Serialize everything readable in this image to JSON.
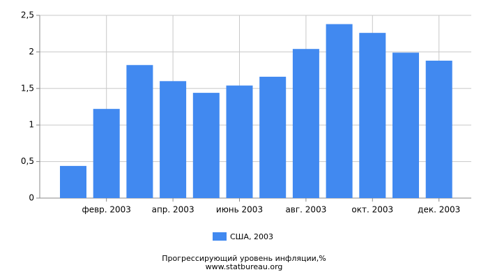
{
  "chart_data": {
    "type": "bar",
    "categories": [
      null,
      "февр. 2003",
      null,
      "апр. 2003",
      null,
      "июнь 2003",
      null,
      "авг. 2003",
      null,
      "окт. 2003",
      null,
      "дек. 2003"
    ],
    "series": [
      {
        "name": "США, 2003",
        "color": "#4189f0",
        "values": [
          0.44,
          1.22,
          1.82,
          1.6,
          1.44,
          1.54,
          1.66,
          2.04,
          2.38,
          2.26,
          1.99,
          1.88
        ]
      }
    ],
    "ylim": [
      0,
      2.5
    ],
    "yticks": [
      0,
      {
        "value": 0.5,
        "label": "0,5"
      },
      1,
      {
        "value": 1.5,
        "label": "1,5"
      },
      2,
      {
        "value": 2.5,
        "label": "2,5"
      }
    ],
    "grid": true,
    "legend": "bottom",
    "caption": "Прогрессирующий уровень инфляции,%",
    "source": "www.statbureau.org"
  }
}
